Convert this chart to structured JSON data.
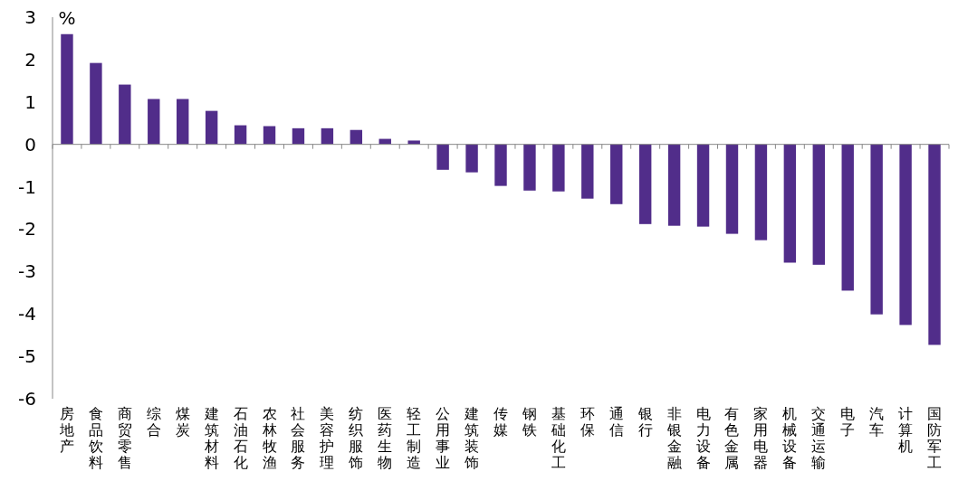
{
  "chart_data": {
    "type": "bar",
    "ylabel": "%",
    "color": "#512d8a",
    "categories": [
      "房地产",
      "食品饮料",
      "商贸零售",
      "综合",
      "煤炭",
      "建筑材料",
      "石油石化",
      "农林牧渔",
      "社会服务",
      "美容护理",
      "纺织服饰",
      "医药生物",
      "轻工制造",
      "公用事业",
      "建筑装饰",
      "传媒",
      "钢铁",
      "基础化工",
      "环保",
      "通信",
      "银行",
      "非银金融",
      "电力设备",
      "有色金属",
      "家用电器",
      "机械设备",
      "交通运输",
      "电子",
      "汽车",
      "计算机",
      "国防军工"
    ],
    "values": [
      2.6,
      1.92,
      1.41,
      1.07,
      1.07,
      0.79,
      0.45,
      0.43,
      0.38,
      0.38,
      0.34,
      0.13,
      0.09,
      -0.6,
      -0.66,
      -0.98,
      -1.09,
      -1.11,
      -1.28,
      -1.41,
      -1.88,
      -1.92,
      -1.94,
      -2.11,
      -2.26,
      -2.79,
      -2.84,
      -3.45,
      -4.01,
      -4.26,
      -4.73
    ],
    "ylim": [
      -6,
      3
    ],
    "yticks": [
      -6,
      -5,
      -4,
      -3,
      -2,
      -1,
      0,
      1,
      2,
      3
    ]
  }
}
